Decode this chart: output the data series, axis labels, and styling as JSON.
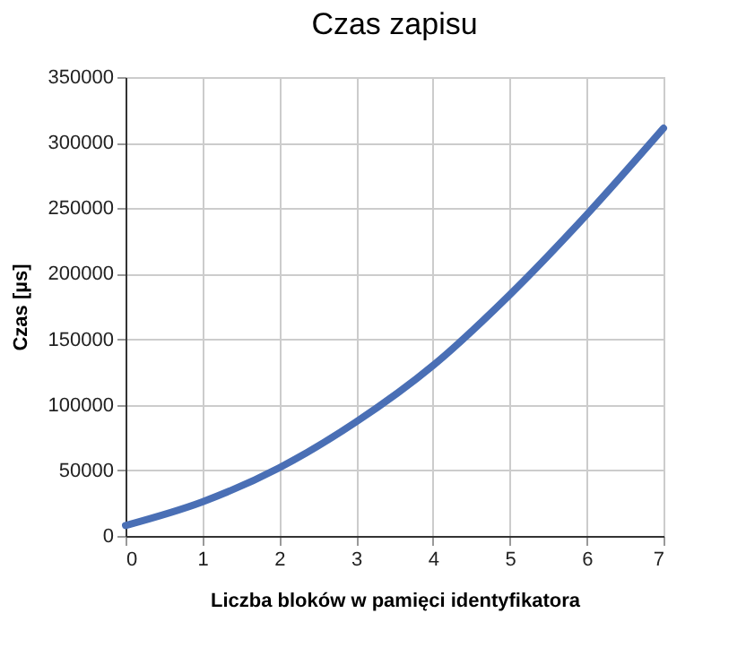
{
  "chart_data": {
    "type": "line",
    "title": "Czas zapisu",
    "xlabel": "Liczba bloków w pamięci identyfikatora",
    "ylabel": "Czas [µs]",
    "x": [
      0,
      1,
      2,
      3,
      4,
      5,
      6,
      7
    ],
    "series": [
      {
        "color": "#4a6fb5",
        "values": [
          8000,
          26000,
          52000,
          87000,
          130000,
          184000,
          245000,
          311000
        ]
      }
    ],
    "xlim": [
      0,
      7
    ],
    "xticks": [
      0,
      1,
      2,
      3,
      4,
      5,
      6,
      7
    ],
    "ylim": [
      0,
      350000
    ],
    "yticks": [
      0,
      50000,
      100000,
      150000,
      200000,
      250000,
      300000,
      350000
    ],
    "grid": true,
    "marker": "none",
    "line_style": "solid"
  }
}
